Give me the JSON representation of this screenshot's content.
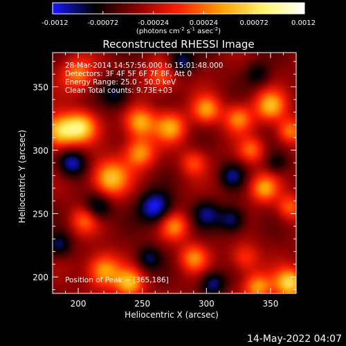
{
  "colorbar": {
    "ticks": [
      "-0.0012",
      "-0.00072",
      "-0.00024",
      "0.00024",
      "0.00072",
      "0.0012"
    ],
    "tick_values": [
      -0.0012,
      -0.00072,
      -0.00024,
      0.00024,
      0.00072,
      0.0012
    ],
    "range": [
      -0.0012,
      0.0012
    ],
    "unit_parts": {
      "p1": "(photons cm",
      "e1": "-2",
      "p2": " s",
      "e2": "-1",
      "p3": " asec",
      "e3": "-2",
      "p4": ")"
    },
    "colormap": [
      "#1818ff",
      "#000000",
      "#8a0000",
      "#ff1f00",
      "#ff9d00",
      "#fff36a",
      "#ffffff"
    ]
  },
  "chart_data": {
    "type": "heatmap",
    "title": "Reconstructed RHESSI Image",
    "xlabel": "Heliocentric X (arcsec)",
    "ylabel": "Heliocentric Y (arcsec)",
    "xlim": [
      180,
      370
    ],
    "ylim": [
      187,
      377
    ],
    "xticks": [
      200,
      250,
      300,
      350
    ],
    "yticks": [
      200,
      250,
      300,
      350
    ],
    "annotations": [
      "28-Mar-2014 14:57:56.000 to 15:01:48.000",
      "Detectors: 3F 4F 5F 6F 7F 8F, Att 0",
      "Energy Range: 25.0 - 50.0 keV",
      "Clean    Total counts: 9.73E+03"
    ],
    "peak_label": "Position of Peak = [365,186]",
    "peak": [
      365,
      186
    ],
    "peak_value": 0.0012,
    "sources": [
      {
        "x": 186,
        "y": 315,
        "v": 0.0011,
        "r": 13
      },
      {
        "x": 202,
        "y": 318,
        "v": 0.001,
        "r": 12
      },
      {
        "x": 200,
        "y": 360,
        "v": 0.0007,
        "r": 13
      },
      {
        "x": 225,
        "y": 278,
        "v": 0.001,
        "r": 14
      },
      {
        "x": 248,
        "y": 298,
        "v": 0.0008,
        "r": 12
      },
      {
        "x": 248,
        "y": 322,
        "v": 0.0009,
        "r": 12
      },
      {
        "x": 272,
        "y": 318,
        "v": 0.0008,
        "r": 12
      },
      {
        "x": 265,
        "y": 358,
        "v": 0.0006,
        "r": 12
      },
      {
        "x": 300,
        "y": 332,
        "v": 0.0008,
        "r": 11
      },
      {
        "x": 325,
        "y": 325,
        "v": 0.0007,
        "r": 11
      },
      {
        "x": 350,
        "y": 335,
        "v": 0.0009,
        "r": 12
      },
      {
        "x": 365,
        "y": 315,
        "v": 0.0007,
        "r": 10
      },
      {
        "x": 335,
        "y": 300,
        "v": 0.0006,
        "r": 10
      },
      {
        "x": 290,
        "y": 290,
        "v": 0.0005,
        "r": 10
      },
      {
        "x": 345,
        "y": 270,
        "v": 0.0008,
        "r": 11
      },
      {
        "x": 365,
        "y": 255,
        "v": 0.0006,
        "r": 10
      },
      {
        "x": 275,
        "y": 240,
        "v": 0.0007,
        "r": 11
      },
      {
        "x": 205,
        "y": 245,
        "v": 0.0006,
        "r": 11
      },
      {
        "x": 220,
        "y": 205,
        "v": 0.0009,
        "r": 13
      },
      {
        "x": 240,
        "y": 195,
        "v": 0.0009,
        "r": 11
      },
      {
        "x": 290,
        "y": 215,
        "v": 0.0007,
        "r": 11
      },
      {
        "x": 330,
        "y": 215,
        "v": 0.0005,
        "r": 11
      },
      {
        "x": 365,
        "y": 195,
        "v": 0.0011,
        "r": 12
      },
      {
        "x": 340,
        "y": 192,
        "v": 0.0008,
        "r": 11
      },
      {
        "x": 230,
        "y": 345,
        "v": -0.0005,
        "r": 12
      },
      {
        "x": 280,
        "y": 370,
        "v": -0.0006,
        "r": 10
      },
      {
        "x": 215,
        "y": 255,
        "v": -0.0006,
        "r": 11
      },
      {
        "x": 260,
        "y": 255,
        "v": -0.0008,
        "r": 13
      },
      {
        "x": 195,
        "y": 290,
        "v": -0.0007,
        "r": 11
      },
      {
        "x": 300,
        "y": 250,
        "v": -0.0005,
        "r": 11
      },
      {
        "x": 320,
        "y": 280,
        "v": -0.0005,
        "r": 10
      },
      {
        "x": 320,
        "y": 245,
        "v": -0.0006,
        "r": 11
      },
      {
        "x": 185,
        "y": 225,
        "v": -0.0005,
        "r": 10
      },
      {
        "x": 305,
        "y": 195,
        "v": -0.0006,
        "r": 10
      },
      {
        "x": 255,
        "y": 215,
        "v": -0.0005,
        "r": 10
      },
      {
        "x": 355,
        "y": 290,
        "v": -0.0004,
        "r": 9
      },
      {
        "x": 340,
        "y": 360,
        "v": -0.0004,
        "r": 10
      }
    ]
  },
  "footer": {
    "date": "14-May-2022 04:07"
  }
}
